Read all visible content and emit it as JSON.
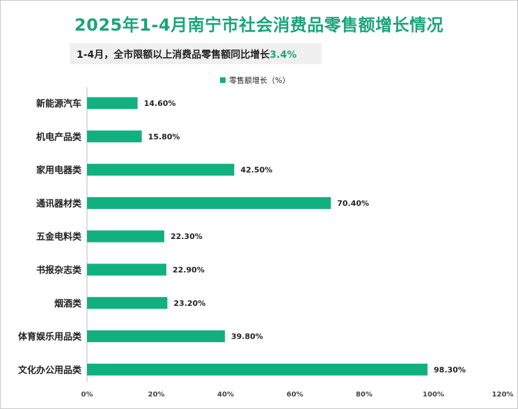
{
  "title": "2025年1-4月南宁市社会消费品零售额增长情况",
  "subtitle": {
    "prefix": "1-4月，全市限额以上消费品零售额同比增长",
    "highlight": "3.4%"
  },
  "colors": {
    "bar": "#12b07f",
    "title": "#1aa579"
  },
  "chart_data": {
    "type": "bar",
    "orientation": "horizontal",
    "categories": [
      "新能源汽车",
      "机电产品类",
      "家用电器类",
      "通讯器材类",
      "五金电料类",
      "书报杂志类",
      "烟酒类",
      "体育娱乐用品类",
      "文化办公用品类"
    ],
    "series": [
      {
        "name": "零售额增长（%）",
        "values": [
          14.6,
          15.8,
          42.5,
          70.4,
          22.3,
          22.9,
          23.2,
          39.8,
          98.3
        ]
      }
    ],
    "data_labels": [
      "14.60%",
      "15.80%",
      "42.50%",
      "70.40%",
      "22.30%",
      "22.90%",
      "23.20%",
      "39.80%",
      "98.30%"
    ],
    "xlim": [
      0,
      120
    ],
    "x_ticks": [
      0,
      20,
      40,
      60,
      80,
      100,
      120
    ],
    "x_tick_labels": [
      "0%",
      "20%",
      "40%",
      "60%",
      "80%",
      "100%",
      "120%"
    ],
    "legend_position": "top-center",
    "grid": false
  }
}
